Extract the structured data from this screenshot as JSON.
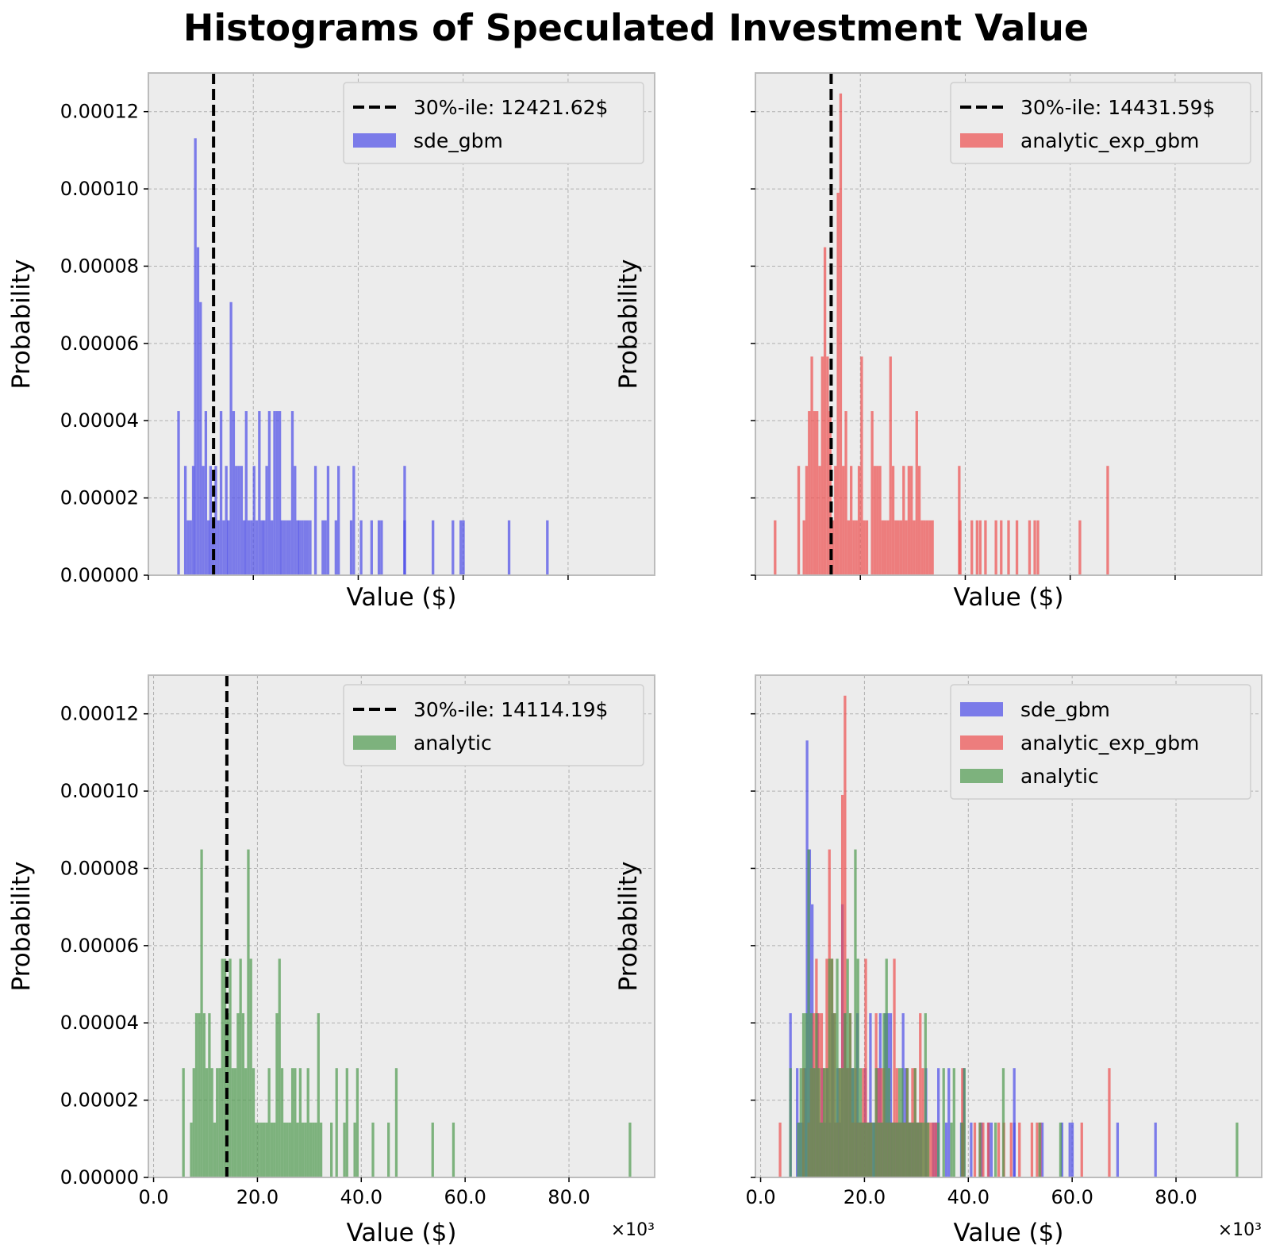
{
  "title": "Histograms of Speculated Investment Value",
  "colors": {
    "sde_gbm": "#4b4be8",
    "analytic_exp_gbm": "#ee4f4f",
    "analytic": "#4f9a4f",
    "plot_bg": "#ececec",
    "grid": "#b0b0b0"
  },
  "chart_data": [
    {
      "type": "bar",
      "subplot": "top-left",
      "xlabel": "Value ($)",
      "ylabel": "Probability",
      "x_unit": "thousand $",
      "xlim": [
        0,
        96.5
      ],
      "ylim": [
        0,
        0.00013
      ],
      "y_ticks": [
        "0.00000",
        "0.00002",
        "0.00004",
        "0.00006",
        "0.00008",
        "0.00010",
        "0.00012"
      ],
      "show_x_tick_labels": false,
      "percentile_line": {
        "value": 12.42162,
        "label": "30%-ile: 12421.62$"
      },
      "legend_position": "top-right",
      "series": [
        {
          "name": "sde_gbm",
          "color_key": "sde_gbm",
          "bars": [
            [
              5.5,
              4.25e-05
            ],
            [
              6.8,
              2.83e-05
            ],
            [
              7.3,
              1.42e-05
            ],
            [
              7.8,
              1.42e-05
            ],
            [
              8.3,
              2.83e-05
            ],
            [
              8.7,
              0.0001131
            ],
            [
              9.2,
              8.49e-05
            ],
            [
              9.7,
              7.07e-05
            ],
            [
              10.2,
              2.83e-05
            ],
            [
              10.7,
              4.25e-05
            ],
            [
              11.2,
              1.42e-05
            ],
            [
              11.6,
              2.83e-05
            ],
            [
              12.1,
              1.42e-05
            ],
            [
              12.6,
              2.83e-05
            ],
            [
              13.1,
              1.42e-05
            ],
            [
              13.6,
              4.25e-05
            ],
            [
              14.1,
              1.42e-05
            ],
            [
              14.6,
              2.83e-05
            ],
            [
              15.0,
              1.42e-05
            ],
            [
              15.5,
              7.07e-05
            ],
            [
              16.0,
              4.25e-05
            ],
            [
              16.5,
              2.83e-05
            ],
            [
              17.0,
              2.83e-05
            ],
            [
              17.5,
              2.83e-05
            ],
            [
              18.0,
              1.42e-05
            ],
            [
              18.4,
              4.25e-05
            ],
            [
              18.9,
              1.42e-05
            ],
            [
              19.4,
              1.42e-05
            ],
            [
              19.9,
              2.83e-05
            ],
            [
              20.4,
              1.42e-05
            ],
            [
              20.9,
              4.25e-05
            ],
            [
              21.4,
              1.42e-05
            ],
            [
              21.8,
              1.42e-05
            ],
            [
              22.3,
              2.83e-05
            ],
            [
              22.8,
              4.25e-05
            ],
            [
              23.3,
              1.42e-05
            ],
            [
              23.8,
              4.25e-05
            ],
            [
              24.3,
              4.25e-05
            ],
            [
              24.8,
              4.25e-05
            ],
            [
              25.2,
              1.42e-05
            ],
            [
              25.7,
              1.42e-05
            ],
            [
              26.2,
              1.42e-05
            ],
            [
              26.7,
              1.42e-05
            ],
            [
              27.2,
              4.25e-05
            ],
            [
              27.7,
              2.83e-05
            ],
            [
              28.2,
              1.42e-05
            ],
            [
              28.6,
              1.42e-05
            ],
            [
              29.1,
              1.42e-05
            ],
            [
              29.6,
              1.42e-05
            ],
            [
              30.1,
              1.42e-05
            ],
            [
              30.6,
              1.42e-05
            ],
            [
              31.6,
              2.83e-05
            ],
            [
              33.0,
              1.42e-05
            ],
            [
              33.5,
              1.42e-05
            ],
            [
              34.0,
              2.83e-05
            ],
            [
              35.5,
              1.42e-05
            ],
            [
              36.0,
              2.83e-05
            ],
            [
              38.4,
              1.42e-05
            ],
            [
              38.9,
              2.83e-05
            ],
            [
              40.3,
              1.42e-05
            ],
            [
              42.3,
              1.42e-05
            ],
            [
              43.7,
              1.42e-05
            ],
            [
              44.2,
              1.42e-05
            ],
            [
              48.6,
              2.83e-05
            ],
            [
              48.6,
              1.42e-05
            ],
            [
              54.0,
              1.42e-05
            ],
            [
              57.8,
              1.42e-05
            ],
            [
              59.3,
              1.42e-05
            ],
            [
              59.8,
              1.42e-05
            ],
            [
              68.5,
              1.42e-05
            ],
            [
              75.8,
              1.42e-05
            ]
          ]
        }
      ]
    },
    {
      "type": "bar",
      "subplot": "top-right",
      "xlabel": "Value ($)",
      "ylabel": "Probability",
      "x_unit": "thousand $",
      "xlim": [
        0,
        96.5
      ],
      "ylim": [
        0,
        0.00013
      ],
      "show_x_tick_labels": false,
      "show_y_tick_labels": false,
      "percentile_line": {
        "value": 14.43159,
        "label": "30%-ile: 14431.59$"
      },
      "legend_position": "top-right",
      "series": [
        {
          "name": "analytic_exp_gbm",
          "color_key": "analytic_exp_gbm",
          "bars": [
            [
              3.5,
              1.42e-05
            ],
            [
              8.0,
              2.83e-05
            ],
            [
              9.0,
              1.42e-05
            ],
            [
              9.5,
              2.83e-05
            ],
            [
              10.0,
              4.25e-05
            ],
            [
              10.5,
              5.66e-05
            ],
            [
              11.0,
              4.25e-05
            ],
            [
              11.5,
              4.25e-05
            ],
            [
              12.0,
              2.83e-05
            ],
            [
              12.5,
              5.66e-05
            ],
            [
              13.0,
              8.49e-05
            ],
            [
              13.5,
              5.66e-05
            ],
            [
              14.0,
              4.25e-05
            ],
            [
              14.5,
              1.42e-05
            ],
            [
              15.0,
              2.83e-05
            ],
            [
              15.5,
              9.9e-05
            ],
            [
              16.0,
              0.0001247
            ],
            [
              16.5,
              2.83e-05
            ],
            [
              17.0,
              4.25e-05
            ],
            [
              17.5,
              1.42e-05
            ],
            [
              18.0,
              2.83e-05
            ],
            [
              18.5,
              1.42e-05
            ],
            [
              19.0,
              1.42e-05
            ],
            [
              19.5,
              2.83e-05
            ],
            [
              20.0,
              5.66e-05
            ],
            [
              20.5,
              1.42e-05
            ],
            [
              21.0,
              1.42e-05
            ],
            [
              22.0,
              4.25e-05
            ],
            [
              22.5,
              2.83e-05
            ],
            [
              23.0,
              2.83e-05
            ],
            [
              23.5,
              2.83e-05
            ],
            [
              24.0,
              1.42e-05
            ],
            [
              24.5,
              1.42e-05
            ],
            [
              25.0,
              1.42e-05
            ],
            [
              25.5,
              5.66e-05
            ],
            [
              26.0,
              2.83e-05
            ],
            [
              26.5,
              1.42e-05
            ],
            [
              27.0,
              1.42e-05
            ],
            [
              27.5,
              1.42e-05
            ],
            [
              28.0,
              2.83e-05
            ],
            [
              28.5,
              1.42e-05
            ],
            [
              29.0,
              2.83e-05
            ],
            [
              29.5,
              2.83e-05
            ],
            [
              30.0,
              1.42e-05
            ],
            [
              30.5,
              4.25e-05
            ],
            [
              31.0,
              2.83e-05
            ],
            [
              31.5,
              1.42e-05
            ],
            [
              32.0,
              1.42e-05
            ],
            [
              32.5,
              1.42e-05
            ],
            [
              33.0,
              1.42e-05
            ],
            [
              33.5,
              1.42e-05
            ],
            [
              38.6,
              2.83e-05
            ],
            [
              38.8,
              1.42e-05
            ],
            [
              41.0,
              1.42e-05
            ],
            [
              42.0,
              1.42e-05
            ],
            [
              42.6,
              1.42e-05
            ],
            [
              43.6,
              1.42e-05
            ],
            [
              45.6,
              1.42e-05
            ],
            [
              46.6,
              1.42e-05
            ],
            [
              48.0,
              1.42e-05
            ],
            [
              49.6,
              1.42e-05
            ],
            [
              52.0,
              1.42e-05
            ],
            [
              53.0,
              1.42e-05
            ],
            [
              53.6,
              1.42e-05
            ],
            [
              61.6,
              1.42e-05
            ],
            [
              66.9,
              2.83e-05
            ]
          ]
        }
      ]
    },
    {
      "type": "bar",
      "subplot": "bottom-left",
      "xlabel": "Value ($)",
      "ylabel": "Probability",
      "x_unit": "thousand $",
      "x_offset_label": "×10³",
      "xlim": [
        -1,
        96.5
      ],
      "ylim": [
        0,
        0.00013
      ],
      "x_ticks": [
        "0.0",
        "20.0",
        "40.0",
        "60.0",
        "80.0"
      ],
      "y_ticks": [
        "0.00000",
        "0.00002",
        "0.00004",
        "0.00006",
        "0.00008",
        "0.00010",
        "0.00012"
      ],
      "percentile_line": {
        "value": 14.11419,
        "label": "30%-ile: 14114.19$"
      },
      "legend_position": "top-right",
      "series": [
        {
          "name": "analytic",
          "color_key": "analytic",
          "bars": [
            [
              5.5,
              2.83e-05
            ],
            [
              7.0,
              1.42e-05
            ],
            [
              7.5,
              2.83e-05
            ],
            [
              8.0,
              4.25e-05
            ],
            [
              8.5,
              4.25e-05
            ],
            [
              9.0,
              8.49e-05
            ],
            [
              9.5,
              4.25e-05
            ],
            [
              10.0,
              2.83e-05
            ],
            [
              10.5,
              4.25e-05
            ],
            [
              11.0,
              2.83e-05
            ],
            [
              11.5,
              1.42e-05
            ],
            [
              12.0,
              2.83e-05
            ],
            [
              12.5,
              2.83e-05
            ],
            [
              13.0,
              5.66e-05
            ],
            [
              13.5,
              5.66e-05
            ],
            [
              14.0,
              4.25e-05
            ],
            [
              14.5,
              5.66e-05
            ],
            [
              15.0,
              2.83e-05
            ],
            [
              15.5,
              2.83e-05
            ],
            [
              16.0,
              4.25e-05
            ],
            [
              16.5,
              5.66e-05
            ],
            [
              17.0,
              4.25e-05
            ],
            [
              17.5,
              2.83e-05
            ],
            [
              18.0,
              8.49e-05
            ],
            [
              18.5,
              5.66e-05
            ],
            [
              19.0,
              2.83e-05
            ],
            [
              19.5,
              1.42e-05
            ],
            [
              20.0,
              1.42e-05
            ],
            [
              20.5,
              1.42e-05
            ],
            [
              21.0,
              1.42e-05
            ],
            [
              21.5,
              1.42e-05
            ],
            [
              22.0,
              2.83e-05
            ],
            [
              22.5,
              1.42e-05
            ],
            [
              23.0,
              1.42e-05
            ],
            [
              23.5,
              4.25e-05
            ],
            [
              24.0,
              5.66e-05
            ],
            [
              24.5,
              2.83e-05
            ],
            [
              25.0,
              1.42e-05
            ],
            [
              25.5,
              1.42e-05
            ],
            [
              26.0,
              1.42e-05
            ],
            [
              26.5,
              2.83e-05
            ],
            [
              27.0,
              2.83e-05
            ],
            [
              27.5,
              1.42e-05
            ],
            [
              28.0,
              2.83e-05
            ],
            [
              28.5,
              1.42e-05
            ],
            [
              29.0,
              1.42e-05
            ],
            [
              29.5,
              2.83e-05
            ],
            [
              30.0,
              1.42e-05
            ],
            [
              30.5,
              1.42e-05
            ],
            [
              31.0,
              1.42e-05
            ],
            [
              31.5,
              4.25e-05
            ],
            [
              32.0,
              1.42e-05
            ],
            [
              34.0,
              1.42e-05
            ],
            [
              35.0,
              2.83e-05
            ],
            [
              36.5,
              1.42e-05
            ],
            [
              37.0,
              2.83e-05
            ],
            [
              38.5,
              1.42e-05
            ],
            [
              39.0,
              2.83e-05
            ],
            [
              42.0,
              1.42e-05
            ],
            [
              45.0,
              1.42e-05
            ],
            [
              46.5,
              2.83e-05
            ],
            [
              53.5,
              1.42e-05
            ],
            [
              57.5,
              1.42e-05
            ],
            [
              91.5,
              1.42e-05
            ]
          ]
        }
      ]
    },
    {
      "type": "bar",
      "subplot": "bottom-right",
      "xlabel": "Value ($)",
      "ylabel": "Probability",
      "x_unit": "thousand $",
      "x_offset_label": "×10³",
      "xlim": [
        -1,
        96.5
      ],
      "ylim": [
        0,
        0.00013
      ],
      "x_ticks": [
        "0.0",
        "20.0",
        "40.0",
        "60.0",
        "80.0"
      ],
      "show_y_tick_labels": false,
      "legend_position": "top-right",
      "series": [
        {
          "name": "sde_gbm",
          "color_key": "sde_gbm",
          "same_as_subplot": "top-left"
        },
        {
          "name": "analytic_exp_gbm",
          "color_key": "analytic_exp_gbm",
          "same_as_subplot": "top-right"
        },
        {
          "name": "analytic",
          "color_key": "analytic",
          "same_as_subplot": "bottom-left"
        }
      ]
    }
  ]
}
